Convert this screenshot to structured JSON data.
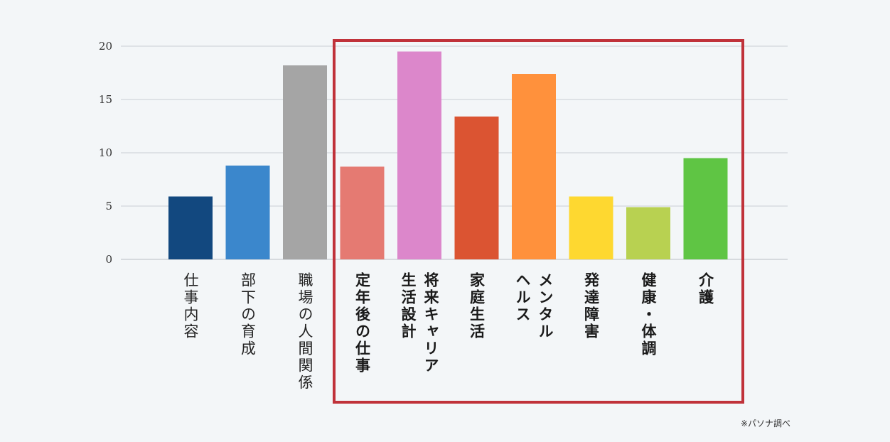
{
  "chart_data": {
    "type": "bar",
    "categories": [
      "仕事内容",
      "部下の育成",
      "職場の人間関係",
      "定年後の仕事",
      "将来キャリア\n生活設計",
      "家庭生活",
      "メンタル\nヘルス",
      "発達障害",
      "健康・体調",
      "介護"
    ],
    "values": [
      5.9,
      8.8,
      18.2,
      8.7,
      19.5,
      13.4,
      17.4,
      5.9,
      4.9,
      9.5
    ],
    "colors": [
      "#12487f",
      "#3b87cc",
      "#a5a5a5",
      "#e57a72",
      "#dc87cb",
      "#db5432",
      "#ff913c",
      "#fed830",
      "#b8d151",
      "#5fc544"
    ],
    "highlighted": [
      false,
      false,
      false,
      true,
      true,
      true,
      true,
      true,
      true,
      true
    ],
    "ylim": [
      0,
      20
    ],
    "yticks": [
      "0",
      "5",
      "10",
      "15",
      "20"
    ],
    "ytick_values": [
      0,
      5,
      10,
      15,
      20
    ],
    "grid": true,
    "title": "",
    "xlabel": "",
    "ylabel": ""
  },
  "footnote": "※パソナ調べ"
}
